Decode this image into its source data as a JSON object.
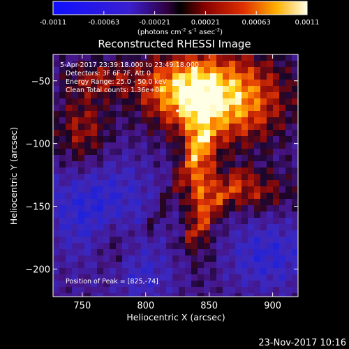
{
  "colorbar": {
    "ticks": [
      "-0.0011",
      "-0.00063",
      "-0.00021",
      "0.00021",
      "0.00063",
      "0.0011"
    ],
    "label_main": "(photons cm",
    "label_exp1": "-2",
    "label_mid": " s",
    "label_exp2": "-1",
    "label_tail": " asec",
    "label_exp3": "-2",
    "label_close": ")"
  },
  "title": "Reconstructed RHESSI Image",
  "annotations": {
    "time_range": "5-Apr-2017 23:39:18.000 to 23:49:18.000",
    "detectors": "Detectors: 3F 6F 7F, Att 0",
    "energy": "Energy Range: 25.0 - 50.0 keV",
    "method": "Clean    Total counts: 1.36e+04",
    "peak": "Position of Peak = [825,-74]"
  },
  "xlabel": "Heliocentric X (arcsec)",
  "ylabel": "Heliocentric Y (arcsec)",
  "footer": "23-Nov-2017 10:16",
  "chart_data": {
    "type": "heatmap",
    "title": "Reconstructed RHESSI Image",
    "xlabel": "Heliocentric X (arcsec)",
    "ylabel": "Heliocentric Y (arcsec)",
    "xlim": [
      727,
      920
    ],
    "ylim": [
      -222,
      -29
    ],
    "xticks": [
      750,
      800,
      850,
      900
    ],
    "yticks": [
      -50,
      -100,
      -150,
      -200
    ],
    "colorbar_range": [
      -0.0011,
      0.0011
    ],
    "peak": [
      825,
      -74
    ],
    "colors": {
      "low": "#0000ff",
      "mid": "#600080",
      "high": "#ffffff"
    }
  }
}
